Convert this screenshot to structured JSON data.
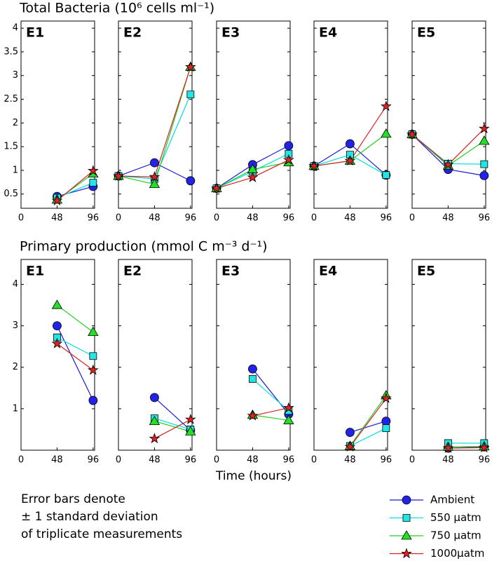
{
  "chart_data": [
    {
      "type": "line",
      "title": "Total Bacteria (10⁶ cells ml⁻¹)",
      "x": [
        0,
        48,
        96
      ],
      "xlim": [
        0,
        98
      ],
      "xticks": [
        0,
        48,
        96
      ],
      "ylim": [
        0.2,
        4.15
      ],
      "yticks": [
        0.5,
        1,
        1.5,
        2,
        2.5,
        3,
        3.5,
        4
      ],
      "panels": [
        {
          "label": "E1",
          "series": [
            {
              "values": [
                null,
                0.45,
                0.66
              ]
            },
            {
              "values": [
                null,
                0.42,
                0.74
              ]
            },
            {
              "values": [
                null,
                0.38,
                0.93
              ]
            },
            {
              "values": [
                null,
                0.36,
                0.99
              ]
            }
          ]
        },
        {
          "label": "E2",
          "series": [
            {
              "values": [
                0.88,
                1.16,
                0.78
              ]
            },
            {
              "values": [
                0.88,
                0.82,
                2.6
              ]
            },
            {
              "values": [
                0.88,
                0.71,
                3.18
              ]
            },
            {
              "values": [
                0.88,
                0.86,
                3.18
              ]
            }
          ]
        },
        {
          "label": "E3",
          "series": [
            {
              "values": [
                0.62,
                1.12,
                1.52
              ]
            },
            {
              "values": [
                0.62,
                0.98,
                1.35
              ]
            },
            {
              "values": [
                0.62,
                1.02,
                1.17
              ]
            },
            {
              "values": [
                0.62,
                0.85,
                1.22
              ]
            }
          ]
        },
        {
          "label": "E4",
          "series": [
            {
              "values": [
                1.09,
                1.56,
                0.9
              ]
            },
            {
              "values": [
                1.09,
                1.33,
                0.9
              ]
            },
            {
              "values": [
                1.09,
                1.2,
                1.77
              ]
            },
            {
              "values": [
                1.09,
                1.2,
                2.35
              ]
            }
          ]
        },
        {
          "label": "E5",
          "series": [
            {
              "values": [
                1.76,
                1.02,
                0.89
              ]
            },
            {
              "values": [
                1.76,
                1.14,
                1.13
              ]
            },
            {
              "values": [
                1.76,
                1.1,
                1.62
              ]
            },
            {
              "values": [
                1.76,
                1.12,
                1.88
              ]
            }
          ]
        }
      ]
    },
    {
      "type": "line",
      "title": "Primary production (mmol C m⁻³ d⁻¹)",
      "xlabel": "Time (hours)",
      "x": [
        0,
        48,
        96
      ],
      "xlim": [
        0,
        98
      ],
      "xticks": [
        0,
        48,
        96
      ],
      "ylim": [
        0,
        4.6
      ],
      "yticks": [
        1,
        2,
        3,
        4
      ],
      "panels": [
        {
          "label": "E1",
          "series": [
            {
              "values": [
                null,
                3.0,
                1.2
              ]
            },
            {
              "values": [
                null,
                2.72,
                2.27
              ]
            },
            {
              "values": [
                null,
                3.5,
                2.85
              ]
            },
            {
              "values": [
                null,
                2.57,
                1.93
              ]
            }
          ]
        },
        {
          "label": "E2",
          "series": [
            {
              "values": [
                null,
                1.27,
                0.48
              ]
            },
            {
              "values": [
                null,
                0.77,
                0.5
              ]
            },
            {
              "values": [
                null,
                0.7,
                0.45
              ]
            },
            {
              "values": [
                null,
                0.28,
                0.74
              ]
            }
          ]
        },
        {
          "label": "E3",
          "series": [
            {
              "values": [
                null,
                1.96,
                0.87
              ]
            },
            {
              "values": [
                null,
                1.72,
                0.95
              ]
            },
            {
              "values": [
                null,
                0.85,
                0.72
              ]
            },
            {
              "values": [
                null,
                0.83,
                1.02
              ]
            }
          ]
        },
        {
          "label": "E4",
          "series": [
            {
              "values": [
                null,
                0.43,
                0.7
              ]
            },
            {
              "values": [
                null,
                0.1,
                0.53
              ]
            },
            {
              "values": [
                null,
                0.1,
                1.32
              ]
            },
            {
              "values": [
                null,
                0.08,
                1.25
              ]
            }
          ]
        },
        {
          "label": "E5",
          "series": [
            {
              "values": [
                null,
                0.05,
                0.08
              ]
            },
            {
              "values": [
                null,
                0.17,
                0.17
              ]
            },
            {
              "values": [
                null,
                0.08,
                0.09
              ]
            },
            {
              "values": [
                null,
                0.05,
                0.06
              ]
            }
          ]
        }
      ]
    }
  ],
  "legend": [
    {
      "name": "Ambient",
      "color": "#1a1ad6",
      "marker": "circle"
    },
    {
      "name": "550 µatm",
      "color": "#00dede",
      "marker": "square"
    },
    {
      "name": "750 µatm",
      "color": "#1fcf1f",
      "marker": "triangle"
    },
    {
      "name": "1000µatm",
      "color": "#d82020",
      "marker": "star"
    }
  ],
  "note": [
    "Error bars denote",
    "± 1 standard deviation",
    "of triplicate measurements"
  ]
}
